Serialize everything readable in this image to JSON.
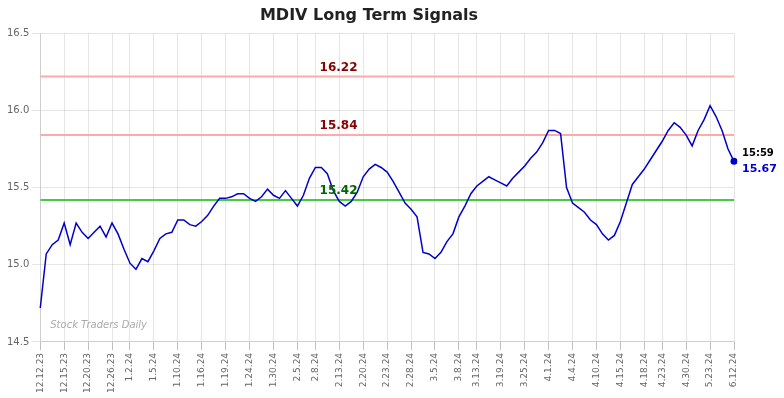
{
  "chart_data": {
    "type": "line",
    "title": "MDIV Long Term Signals",
    "categories": [
      "12.12.23",
      null,
      null,
      null,
      "12.15.23",
      null,
      null,
      null,
      "12.20.23",
      null,
      null,
      null,
      "12.26.23",
      null,
      null,
      "1.2.24",
      null,
      null,
      null,
      "1.5.24",
      null,
      null,
      null,
      "1.10.24",
      null,
      null,
      null,
      "1.16.24",
      null,
      null,
      null,
      "1.19.24",
      null,
      null,
      null,
      "1.24.24",
      null,
      null,
      null,
      "1.30.24",
      null,
      null,
      null,
      "2.5.24",
      null,
      null,
      "2.8.24",
      null,
      null,
      null,
      "2.13.24",
      null,
      null,
      null,
      "2.20.24",
      null,
      null,
      null,
      "2.23.24",
      null,
      null,
      null,
      "2.28.24",
      null,
      null,
      null,
      "3.5.24",
      null,
      null,
      null,
      "3.8.24",
      null,
      null,
      "3.13.24",
      null,
      null,
      null,
      "3.19.24",
      null,
      null,
      null,
      "3.25.24",
      null,
      null,
      null,
      "4.1.24",
      null,
      null,
      null,
      "4.4.24",
      null,
      null,
      null,
      "4.10.24",
      null,
      null,
      null,
      "4.15.24",
      null,
      null,
      null,
      "4.18.24",
      null,
      null,
      "4.23.24",
      null,
      null,
      null,
      "4.30.24",
      null,
      null,
      null,
      "5.23.24",
      null,
      null,
      null,
      "6.12.24"
    ],
    "values": [
      14.72,
      15.07,
      15.13,
      15.16,
      15.27,
      15.13,
      15.27,
      15.21,
      15.17,
      15.21,
      15.25,
      15.18,
      15.27,
      15.2,
      15.1,
      15.01,
      14.97,
      15.04,
      15.02,
      15.09,
      15.17,
      15.2,
      15.21,
      15.29,
      15.29,
      15.26,
      15.25,
      15.28,
      15.32,
      15.38,
      15.43,
      15.43,
      15.44,
      15.46,
      15.46,
      15.43,
      15.41,
      15.44,
      15.49,
      15.45,
      15.43,
      15.48,
      15.43,
      15.38,
      15.45,
      15.56,
      15.63,
      15.63,
      15.59,
      15.48,
      15.41,
      15.38,
      15.41,
      15.47,
      15.57,
      15.62,
      15.65,
      15.63,
      15.6,
      15.54,
      15.47,
      15.4,
      15.36,
      15.31,
      15.08,
      15.07,
      15.04,
      15.08,
      15.15,
      15.2,
      15.31,
      15.38,
      15.46,
      15.51,
      15.54,
      15.57,
      15.55,
      15.53,
      15.51,
      15.56,
      15.6,
      15.64,
      15.69,
      15.73,
      15.79,
      15.87,
      15.87,
      15.85,
      15.5,
      15.4,
      15.37,
      15.34,
      15.29,
      15.26,
      15.2,
      15.16,
      15.19,
      15.28,
      15.4,
      15.52,
      15.57,
      15.62,
      15.68,
      15.74,
      15.8,
      15.87,
      15.92,
      15.89,
      15.84,
      15.77,
      15.87,
      15.94,
      16.03,
      15.96,
      15.87,
      15.75,
      15.67
    ],
    "color": "#0000cc",
    "ylim": [
      14.5,
      16.5
    ],
    "yticks": [
      14.5,
      {
        "value": 15.0,
        "label": "15.0"
      },
      15.5,
      {
        "value": 16.0,
        "label": "16.0"
      },
      16.5
    ],
    "grid": true,
    "reference_lines": [
      {
        "value": 16.22,
        "label": "16.22",
        "color": "#ffaaaa",
        "label_color": "#8b0000"
      },
      {
        "value": 15.84,
        "label": "15.84",
        "color": "#ffaaaa",
        "label_color": "#8b0000"
      },
      {
        "value": 15.42,
        "label": "15.42",
        "color": "#44cc44",
        "label_color": "#006600"
      }
    ],
    "last_point": {
      "marker": "circle",
      "color": "#0000cc",
      "label": "15:59",
      "value_label": "15.67"
    },
    "watermark": "Stock Traders Daily"
  }
}
